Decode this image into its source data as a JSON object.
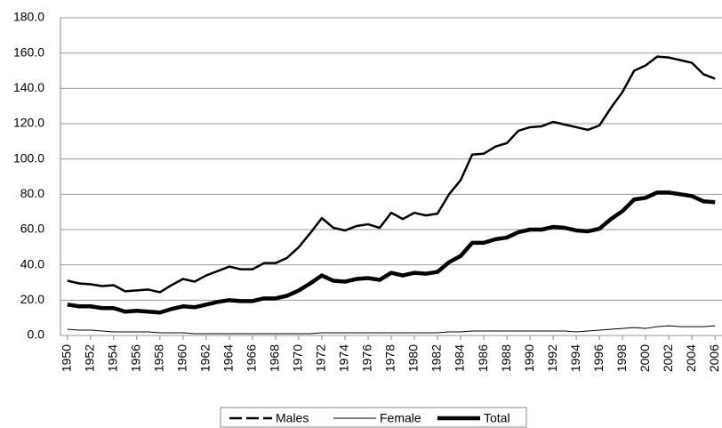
{
  "chart_data": {
    "type": "line",
    "x": [
      1950,
      1951,
      1952,
      1953,
      1954,
      1955,
      1956,
      1957,
      1958,
      1959,
      1960,
      1961,
      1962,
      1963,
      1964,
      1965,
      1966,
      1967,
      1968,
      1969,
      1970,
      1971,
      1972,
      1973,
      1974,
      1975,
      1976,
      1977,
      1978,
      1979,
      1980,
      1981,
      1982,
      1983,
      1984,
      1985,
      1986,
      1987,
      1988,
      1989,
      1990,
      1991,
      1992,
      1993,
      1994,
      1995,
      1996,
      1997,
      1998,
      1999,
      2000,
      2001,
      2002,
      2003,
      2004,
      2005,
      2006
    ],
    "series": [
      {
        "name": "Males",
        "color": "#000000",
        "width": 2.5,
        "values": [
          31,
          29.5,
          29,
          28,
          28.5,
          25,
          25.5,
          26,
          24.5,
          28.5,
          32,
          30.5,
          34,
          36.5,
          39,
          37.5,
          37.5,
          41,
          41,
          44,
          50,
          58,
          66.5,
          61,
          59.5,
          62,
          63,
          61,
          69.5,
          66,
          69.5,
          68,
          69,
          80,
          88,
          102.5,
          103,
          107,
          109,
          116,
          118,
          118.5,
          121,
          119.5,
          118,
          116.5,
          119,
          129,
          138,
          150,
          153,
          158,
          157.5,
          156,
          154.5,
          148,
          145.5
        ]
      },
      {
        "name": "Female",
        "color": "#000000",
        "width": 1,
        "values": [
          3.5,
          3,
          3,
          2.5,
          2,
          2,
          2,
          2,
          1.5,
          1.5,
          1.5,
          1,
          1,
          1,
          1,
          1,
          1,
          1,
          1,
          1,
          1,
          1,
          1.5,
          1.5,
          1.5,
          1.5,
          1.5,
          1.5,
          1.5,
          1.5,
          1.5,
          1.5,
          1.5,
          2,
          2,
          2.5,
          2.5,
          2.5,
          2.5,
          2.5,
          2.5,
          2.5,
          2.5,
          2.5,
          2,
          2.5,
          3,
          3.5,
          4,
          4.5,
          4,
          5,
          5.5,
          5,
          5,
          5,
          5.5
        ]
      },
      {
        "name": "Total",
        "color": "#000000",
        "width": 4.5,
        "values": [
          17.5,
          16.5,
          16.5,
          15.5,
          15.5,
          13.5,
          14,
          13.5,
          13,
          15,
          16.5,
          16,
          17.5,
          19,
          20,
          19.5,
          19.5,
          21,
          21,
          22.5,
          25.5,
          29.5,
          34,
          31,
          30.5,
          32,
          32.5,
          31.5,
          35.5,
          34,
          35.5,
          35,
          36,
          41.5,
          45,
          52.5,
          52.5,
          54.5,
          55.5,
          58.5,
          60,
          60,
          61.5,
          61,
          59.5,
          59,
          60.5,
          66,
          70.5,
          77,
          78,
          81,
          81,
          80,
          79,
          76,
          75.5
        ]
      }
    ],
    "xlim": [
      1949.4,
      2006.6
    ],
    "xticks": [
      1950,
      1952,
      1954,
      1956,
      1958,
      1960,
      1962,
      1964,
      1966,
      1968,
      1970,
      1972,
      1974,
      1976,
      1978,
      1980,
      1982,
      1984,
      1986,
      1988,
      1990,
      1992,
      1994,
      1996,
      1998,
      2000,
      2002,
      2004,
      2006
    ],
    "ylim": [
      0,
      180
    ],
    "yticks": [
      {
        "value": 0,
        "label": "0.0"
      },
      {
        "value": 20,
        "label": "20.0"
      },
      {
        "value": 40,
        "label": "40.0"
      },
      {
        "value": 60,
        "label": "60.0"
      },
      {
        "value": 80,
        "label": "80.0"
      },
      {
        "value": 100,
        "label": "100.0"
      },
      {
        "value": 120,
        "label": "120.0"
      },
      {
        "value": 140,
        "label": "140.0"
      },
      {
        "value": 160,
        "label": "160.0"
      },
      {
        "value": 180,
        "label": "180.0"
      }
    ],
    "grid": true,
    "legend": "bottom"
  }
}
